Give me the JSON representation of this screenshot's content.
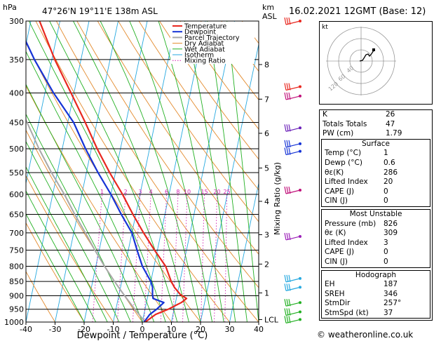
{
  "header": {
    "location": "47°26'N 19°11'E 138m ASL",
    "datetime": "16.02.2021 12GMT (Base: 12)",
    "hpa_label": "hPa",
    "km_label": "km",
    "asl_label": "ASL"
  },
  "chart_data": {
    "type": "skewt",
    "xlabel": "Dewpoint / Temperature (°C)",
    "y_right_label": "Mixing Ratio (g/kg)",
    "pressure_levels": [
      300,
      350,
      400,
      450,
      500,
      550,
      600,
      650,
      700,
      750,
      800,
      850,
      900,
      950,
      1000
    ],
    "x_ticks": [
      -40,
      -30,
      -20,
      -10,
      0,
      10,
      20,
      30,
      40
    ],
    "km_ticks": [
      {
        "km": "8",
        "p": 357
      },
      {
        "km": "7",
        "p": 410
      },
      {
        "km": "6",
        "p": 470
      },
      {
        "km": "5",
        "p": 540
      },
      {
        "km": "4",
        "p": 617
      },
      {
        "km": "3",
        "p": 705
      },
      {
        "km": "2",
        "p": 793
      },
      {
        "km": "1",
        "p": 890
      },
      {
        "km": "LCL",
        "p": 990
      }
    ],
    "mixing_ratio_labels": [
      "1",
      "2",
      "3",
      "4",
      "6",
      "8",
      "10",
      "15",
      "20",
      "25"
    ],
    "mixing_ratio_values": [
      1,
      2,
      3,
      4,
      6,
      8,
      10,
      15,
      20,
      25
    ],
    "legend": [
      "Temperature",
      "Dewpoint",
      "Parcel Trajectory",
      "Dry Adiabat",
      "Wet Adiabat",
      "Isotherm",
      "Mixing Ratio"
    ],
    "temperature": [
      [
        1000,
        1
      ],
      [
        970,
        4
      ],
      [
        950,
        8
      ],
      [
        925,
        12
      ],
      [
        910,
        13.5
      ],
      [
        895,
        11
      ],
      [
        870,
        8.5
      ],
      [
        850,
        7
      ],
      [
        800,
        4
      ],
      [
        750,
        -1
      ],
      [
        700,
        -6
      ],
      [
        650,
        -11
      ],
      [
        600,
        -16
      ],
      [
        550,
        -22
      ],
      [
        500,
        -28
      ],
      [
        450,
        -34
      ],
      [
        400,
        -41
      ],
      [
        350,
        -49
      ],
      [
        300,
        -57
      ]
    ],
    "dewpoint": [
      [
        1000,
        0.6
      ],
      [
        970,
        2
      ],
      [
        950,
        4
      ],
      [
        925,
        6
      ],
      [
        910,
        2
      ],
      [
        895,
        1.5
      ],
      [
        870,
        1
      ],
      [
        850,
        0
      ],
      [
        800,
        -4
      ],
      [
        750,
        -7
      ],
      [
        700,
        -10
      ],
      [
        650,
        -15
      ],
      [
        600,
        -20
      ],
      [
        550,
        -26
      ],
      [
        500,
        -32
      ],
      [
        450,
        -38
      ],
      [
        400,
        -47
      ],
      [
        350,
        -56
      ],
      [
        300,
        -65
      ]
    ],
    "parcel": [
      [
        1000,
        1
      ],
      [
        950,
        -3.5
      ],
      [
        900,
        -8
      ],
      [
        850,
        -12.5
      ],
      [
        800,
        -17
      ],
      [
        750,
        -21.5
      ],
      [
        700,
        -26
      ],
      [
        650,
        -31
      ],
      [
        600,
        -36
      ],
      [
        550,
        -42
      ],
      [
        500,
        -48
      ],
      [
        450,
        -54
      ],
      [
        400,
        -61
      ],
      [
        350,
        -69
      ],
      [
        300,
        -77
      ]
    ]
  },
  "hodograph": {
    "label": "kt",
    "rings": [
      "40",
      "60",
      "120"
    ]
  },
  "indices": {
    "k_label": "K",
    "k_value": "26",
    "tt_label": "Totals Totals",
    "tt_value": "47",
    "pw_label": "PW (cm)",
    "pw_value": "1.79",
    "surface": {
      "title": "Surface",
      "temp_label": "Temp (°C)",
      "temp_value": "1",
      "dewp_label": "Dewp (°C)",
      "dewp_value": "0.6",
      "theta_label": "θε(K)",
      "theta_value": "286",
      "li_label": "Lifted Index",
      "li_value": "20",
      "cape_label": "CAPE (J)",
      "cape_value": "0",
      "cin_label": "CIN (J)",
      "cin_value": "0"
    },
    "most_unstable": {
      "title": "Most Unstable",
      "p_label": "Pressure (mb)",
      "p_value": "826",
      "theta_label": "θε (K)",
      "theta_value": "309",
      "li_label": "Lifted Index",
      "li_value": "3",
      "cape_label": "CAPE (J)",
      "cape_value": "0",
      "cin_label": "CIN (J)",
      "cin_value": "0"
    },
    "hodo": {
      "title": "Hodograph",
      "eh_label": "EH",
      "eh_value": "187",
      "sreh_label": "SREH",
      "sreh_value": "346",
      "dir_label": "StmDir",
      "dir_value": "257°",
      "spd_label": "StmSpd (kt)",
      "spd_value": "37"
    }
  },
  "footer": {
    "copyright": "© weatheronline.co.uk"
  },
  "colors": {
    "temperature": "#e8271f",
    "dewpoint": "#1533d6",
    "parcel": "#a8a8a8",
    "dry_adiabat": "#e38a2c",
    "wet_adiabat": "#22b022",
    "isotherm": "#27a9e0",
    "mixing_ratio": "#d21fb0",
    "wind": "#9b1fb8"
  }
}
